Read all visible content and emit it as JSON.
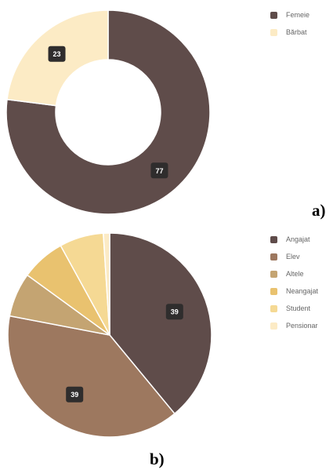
{
  "chart_data": [
    {
      "type": "pie",
      "variant": "donut",
      "panel_label": "a)",
      "legend_position": "top-right",
      "slices": [
        {
          "name": "Femeie",
          "value": 77,
          "color": "#5f4c4a"
        },
        {
          "name": "Bărbat",
          "value": 23,
          "color": "#fcebc5"
        }
      ]
    },
    {
      "type": "pie",
      "panel_label": "b)",
      "legend_position": "top-right",
      "slices": [
        {
          "name": "Angajat",
          "value": 39,
          "color": "#5f4c4a"
        },
        {
          "name": "Elev",
          "value": 39,
          "color": "#9d785f"
        },
        {
          "name": "Altele",
          "value": 7,
          "color": "#c4a472"
        },
        {
          "name": "Neangajat",
          "value": 7,
          "color": "#e9c26f"
        },
        {
          "name": "Student",
          "value": 7,
          "color": "#f5d994"
        },
        {
          "name": "Pensionar",
          "value": 1,
          "color": "#fcebc5"
        }
      ]
    }
  ]
}
